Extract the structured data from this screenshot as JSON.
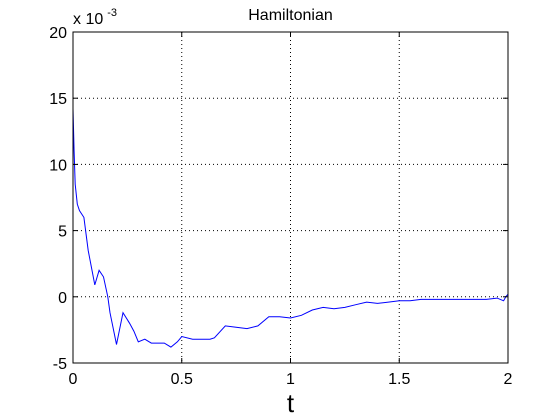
{
  "chart_data": {
    "type": "line",
    "title": "Hamiltonian",
    "xlabel": "t",
    "ylabel": "",
    "y_multiplier_prefix": "x 10",
    "y_multiplier_exponent": "-3",
    "xlim": [
      0,
      2
    ],
    "ylim": [
      -5,
      20
    ],
    "grid": true,
    "xticks": [
      0,
      0.5,
      1,
      1.5,
      2
    ],
    "xtick_labels": [
      "0",
      "0.5",
      "1",
      "1.5",
      "2"
    ],
    "yticks": [
      -5,
      0,
      5,
      10,
      15,
      20
    ],
    "ytick_labels": [
      "-5",
      "0",
      "5",
      "10",
      "15",
      "20"
    ],
    "series": [
      {
        "color": "#0000ff",
        "x": [
          0.0,
          0.005,
          0.01,
          0.02,
          0.03,
          0.05,
          0.07,
          0.1,
          0.12,
          0.14,
          0.16,
          0.17,
          0.2,
          0.23,
          0.26,
          0.28,
          0.3,
          0.33,
          0.36,
          0.39,
          0.42,
          0.45,
          0.48,
          0.5,
          0.55,
          0.6,
          0.63,
          0.65,
          0.7,
          0.75,
          0.8,
          0.85,
          0.9,
          0.95,
          1.0,
          1.05,
          1.1,
          1.15,
          1.2,
          1.25,
          1.3,
          1.35,
          1.4,
          1.45,
          1.5,
          1.55,
          1.6,
          1.65,
          1.7,
          1.75,
          1.8,
          1.85,
          1.9,
          1.95,
          1.98,
          1.99,
          2.0
        ],
        "y": [
          14.2,
          11.0,
          8.5,
          7.0,
          6.5,
          6.0,
          3.5,
          0.9,
          2.0,
          1.5,
          0.0,
          -1.2,
          -3.6,
          -1.2,
          -2.0,
          -2.6,
          -3.4,
          -3.2,
          -3.5,
          -3.5,
          -3.5,
          -3.8,
          -3.4,
          -3.0,
          -3.2,
          -3.2,
          -3.2,
          -3.1,
          -2.2,
          -2.3,
          -2.4,
          -2.2,
          -1.5,
          -1.5,
          -1.6,
          -1.4,
          -1.0,
          -0.8,
          -0.9,
          -0.8,
          -0.6,
          -0.4,
          -0.5,
          -0.4,
          -0.3,
          -0.3,
          -0.2,
          -0.2,
          -0.2,
          -0.2,
          -0.2,
          -0.2,
          -0.2,
          -0.1,
          -0.3,
          0.0,
          0.2
        ]
      }
    ]
  }
}
